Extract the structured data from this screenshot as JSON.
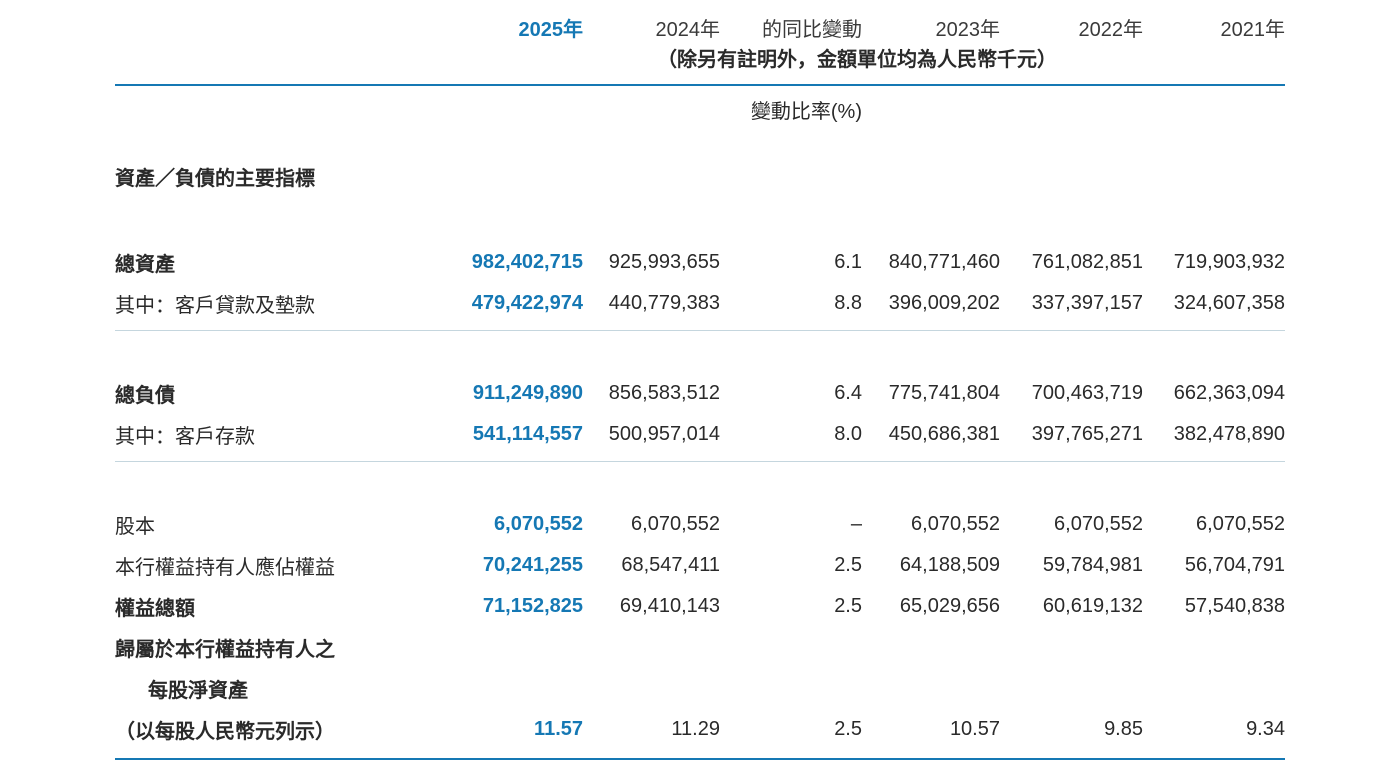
{
  "colors": {
    "accent": "#1578b4",
    "divider": "#c5d6de",
    "text": "#2a2a2a"
  },
  "header": {
    "col_2025": "2025年",
    "col_2024": "2024年",
    "col_change": "的同比變動",
    "col_2023": "2023年",
    "col_2022": "2022年",
    "col_2021": "2021年",
    "note": "（除另有註明外，金額單位均為人民幣千元）",
    "change_unit": "變動比率(%)"
  },
  "section_title": "資產／負債的主要指標",
  "rows": [
    {
      "label": "總資產",
      "values": [
        "982,402,715",
        "925,993,655",
        "6.1",
        "840,771,460",
        "761,082,851",
        "719,903,932"
      ]
    },
    {
      "label": "其中：客戶貸款及墊款",
      "values": [
        "479,422,974",
        "440,779,383",
        "8.8",
        "396,009,202",
        "337,397,157",
        "324,607,358"
      ]
    },
    {
      "label": "總負債",
      "values": [
        "911,249,890",
        "856,583,512",
        "6.4",
        "775,741,804",
        "700,463,719",
        "662,363,094"
      ]
    },
    {
      "label": "其中：客戶存款",
      "values": [
        "541,114,557",
        "500,957,014",
        "8.0",
        "450,686,381",
        "397,765,271",
        "382,478,890"
      ]
    },
    {
      "label": "股本",
      "values": [
        "6,070,552",
        "6,070,552",
        "–",
        "6,070,552",
        "6,070,552",
        "6,070,552"
      ]
    },
    {
      "label": "本行權益持有人應佔權益",
      "values": [
        "70,241,255",
        "68,547,411",
        "2.5",
        "64,188,509",
        "59,784,981",
        "56,704,791"
      ]
    },
    {
      "label": "權益總額",
      "values": [
        "71,152,825",
        "69,410,143",
        "2.5",
        "65,029,656",
        "60,619,132",
        "57,540,838"
      ]
    },
    {
      "label": "歸屬於本行權益持有人之"
    },
    {
      "label": "每股淨資產"
    },
    {
      "label": "（以每股人民幣元列示）",
      "values": [
        "11.57",
        "11.29",
        "2.5",
        "10.57",
        "9.85",
        "9.34"
      ]
    }
  ]
}
